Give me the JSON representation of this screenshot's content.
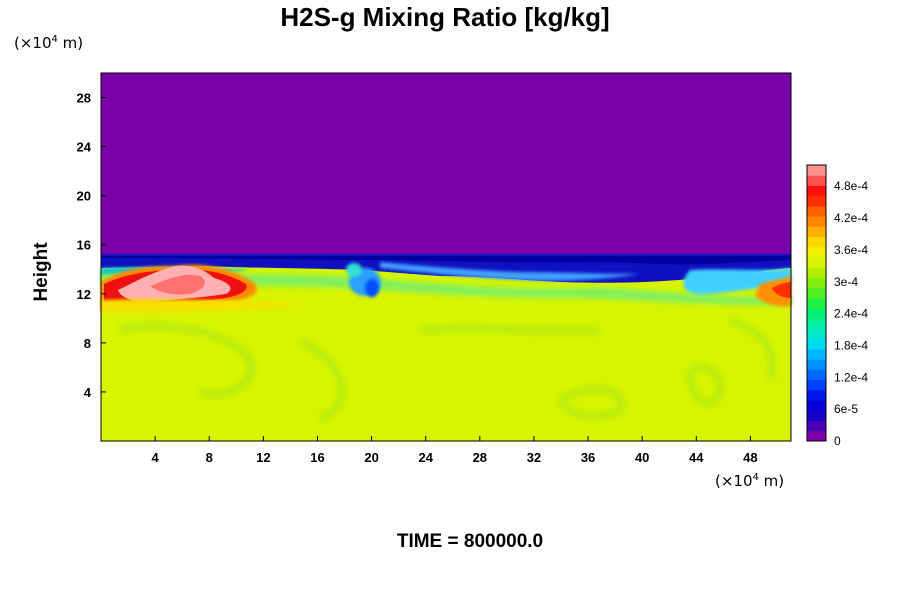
{
  "chart_data": {
    "type": "heatmap",
    "title": "H2S-g Mixing Ratio [kg/kg]",
    "ylabel": "Height",
    "xlabel": "",
    "x_unit": {
      "prefix": "(×10",
      "exp": "4",
      "suffix": " m)"
    },
    "y_unit": {
      "prefix": "(×10",
      "exp": "4",
      "suffix": " m)"
    },
    "xlim": [
      0,
      51
    ],
    "ylim": [
      0,
      30
    ],
    "x_ticks": [
      4,
      8,
      12,
      16,
      20,
      24,
      28,
      32,
      36,
      40,
      44,
      48
    ],
    "y_ticks": [
      4,
      8,
      12,
      16,
      20,
      24,
      28
    ],
    "colorbar": {
      "min": 0,
      "max": 0.00052,
      "ticks": [
        {
          "value": 0,
          "label": "0"
        },
        {
          "value": 6e-05,
          "label": "6e-5"
        },
        {
          "value": 0.00012,
          "label": "1.2e-4"
        },
        {
          "value": 0.00018,
          "label": "1.8e-4"
        },
        {
          "value": 0.00024,
          "label": "2.4e-4"
        },
        {
          "value": 0.0003,
          "label": "3e-4"
        },
        {
          "value": 0.00036,
          "label": "3.6e-4"
        },
        {
          "value": 0.00042,
          "label": "4.2e-4"
        },
        {
          "value": 0.00048,
          "label": "4.8e-4"
        }
      ]
    },
    "layers": [
      {
        "description": "upper region",
        "y_range": [
          15,
          30
        ],
        "value": 0
      },
      {
        "description": "lower region",
        "y_range": [
          0,
          15
        ],
        "value": 0.00033
      },
      {
        "description": "high-concentration plume",
        "x_range": [
          0,
          12
        ],
        "y_range": [
          10.5,
          14.5
        ],
        "value": 0.0005
      }
    ]
  },
  "time_label": "TIME = 800000.0"
}
